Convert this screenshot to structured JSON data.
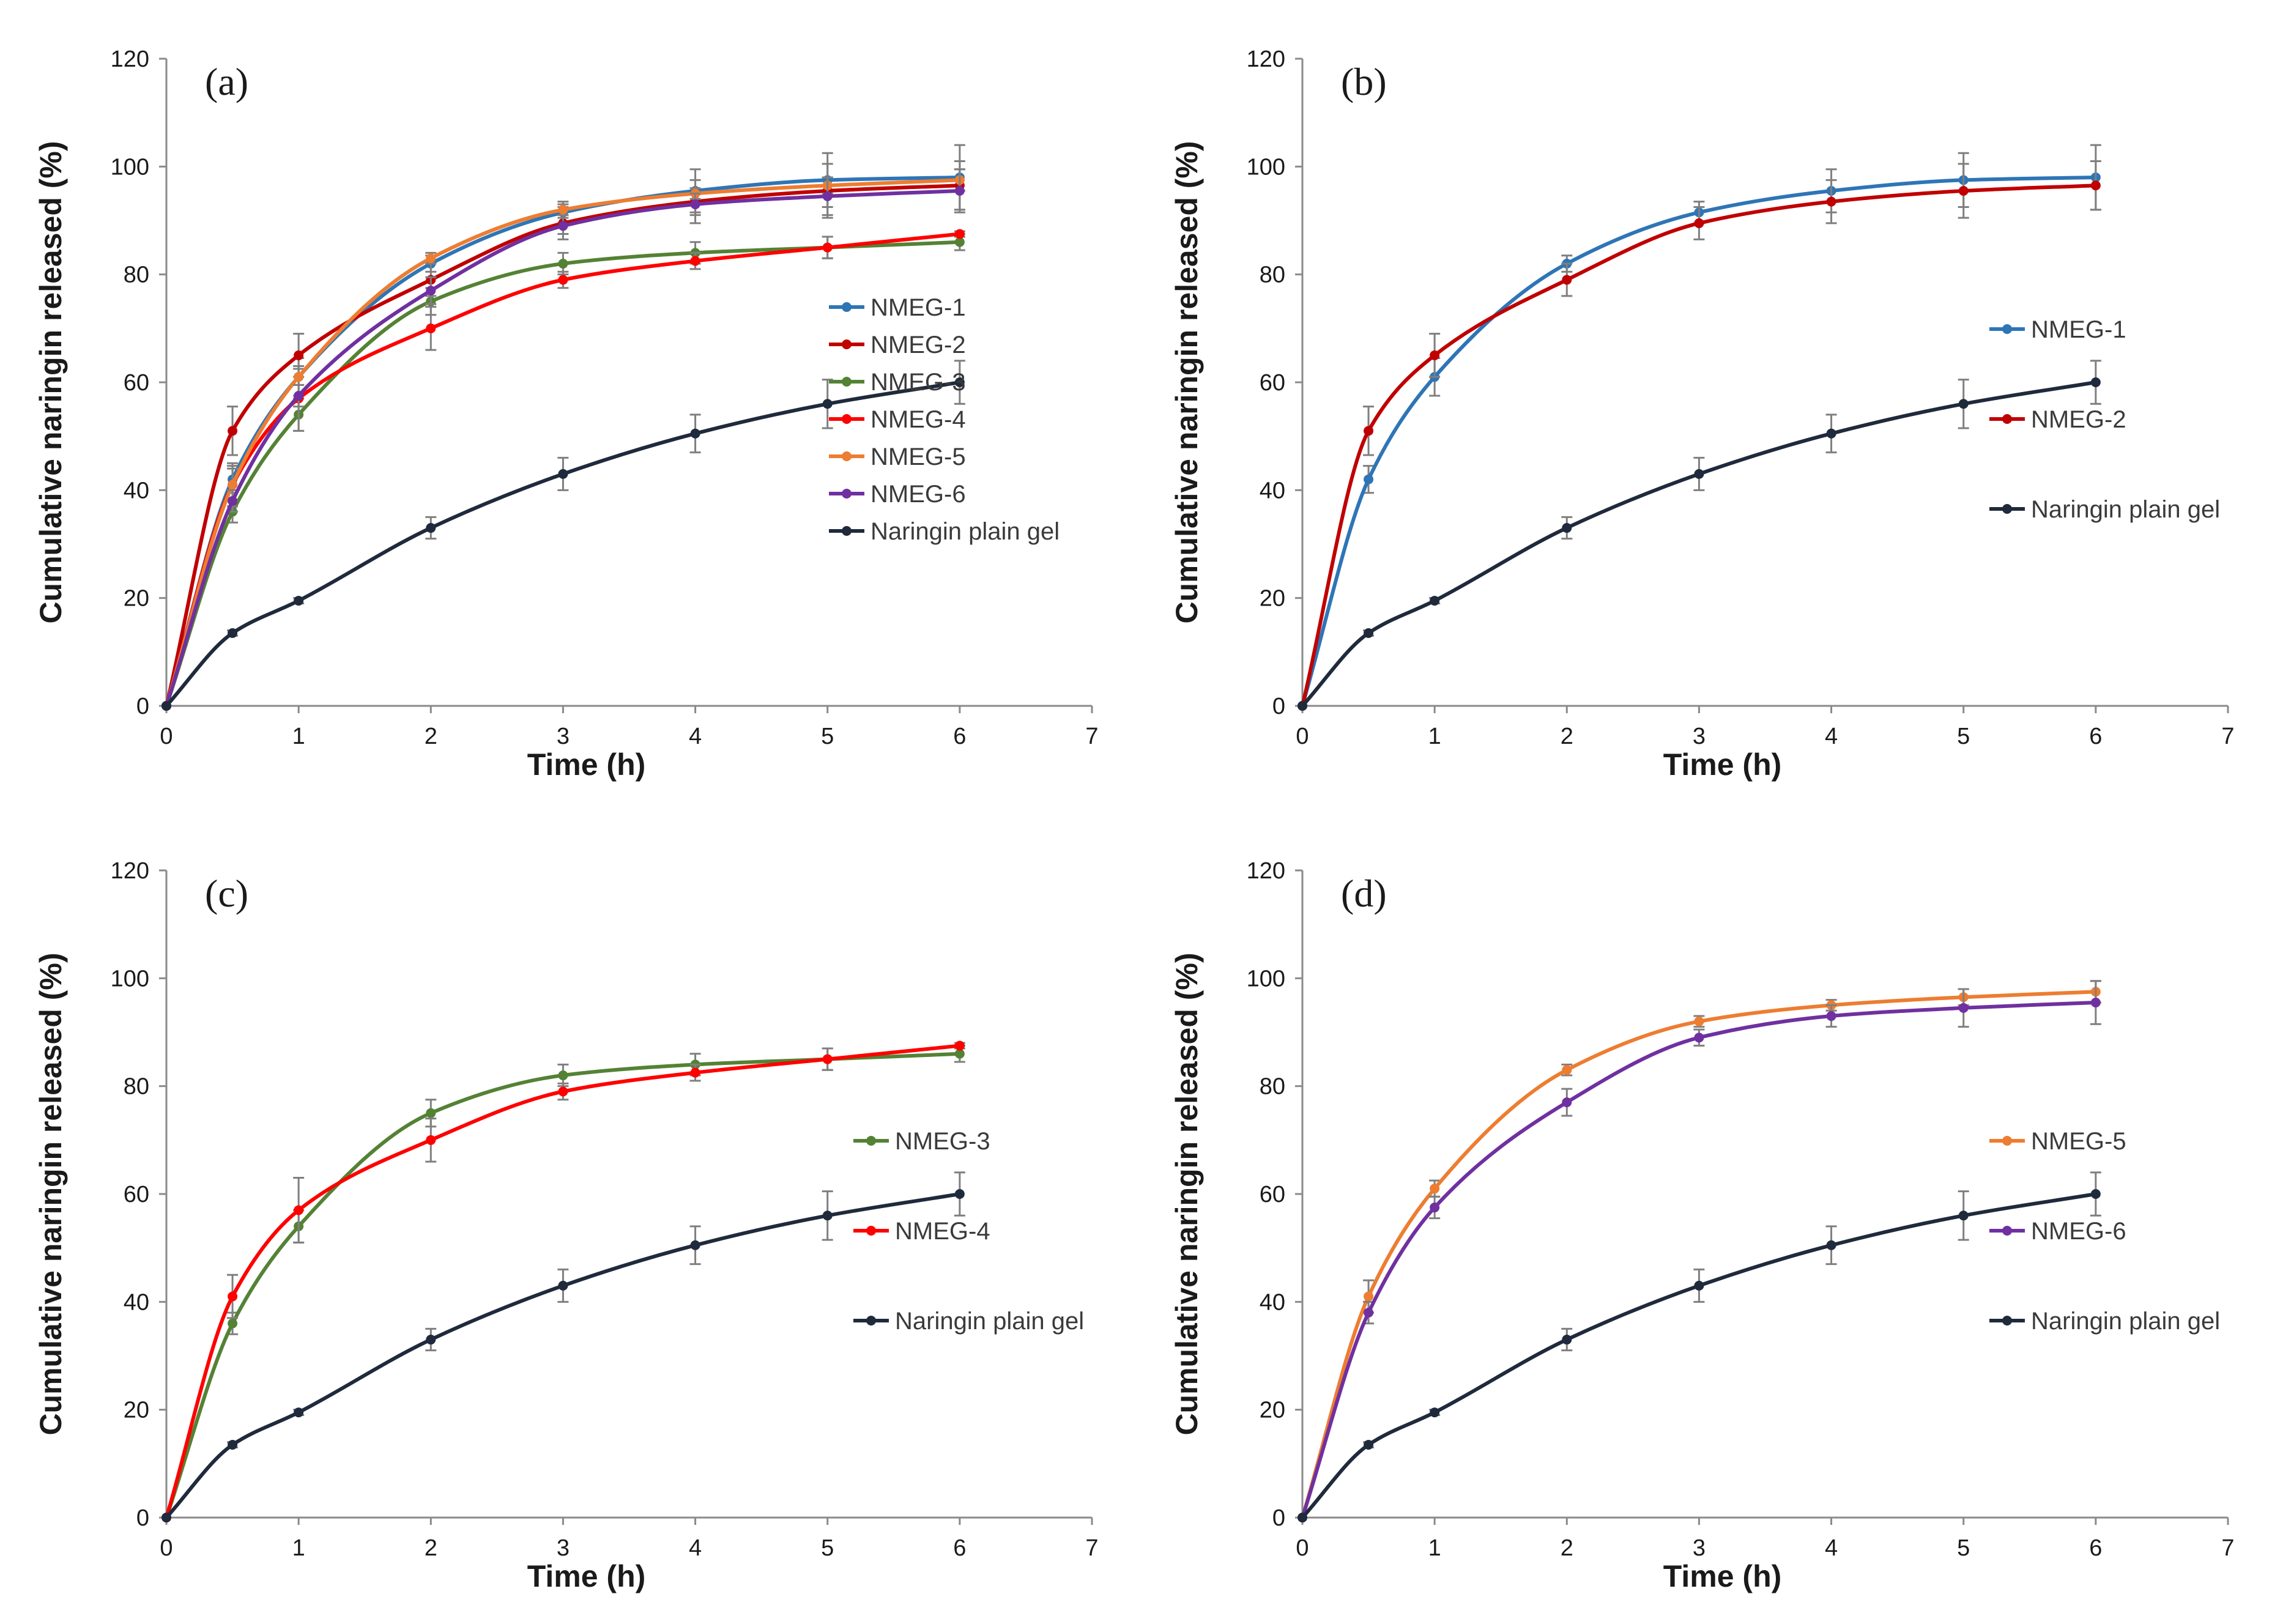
{
  "chart_data": [
    {
      "type": "line",
      "panel_label": "(a)",
      "xlabel": "Time (h)",
      "ylabel": "Cumulative naringin released (%)",
      "xlim": [
        0,
        7
      ],
      "ylim": [
        0,
        120
      ],
      "xticks": [
        0,
        1,
        2,
        3,
        4,
        5,
        6,
        7
      ],
      "yticks": [
        0,
        20,
        40,
        60,
        80,
        100,
        120
      ],
      "grid": false,
      "legend_position": "right-middle",
      "legend_gap": "compact",
      "x": [
        0,
        0.5,
        1,
        2,
        3,
        4,
        5,
        6
      ],
      "series": [
        {
          "name": "NMEG-1",
          "color": "#2e75b6",
          "values": [
            0,
            42,
            61,
            82,
            91.5,
            95.5,
            97.5,
            98
          ],
          "errors": [
            0,
            2.5,
            3.5,
            1.5,
            2,
            4,
            5,
            6
          ]
        },
        {
          "name": "NMEG-2",
          "color": "#c00000",
          "values": [
            0,
            51,
            65,
            79,
            89.5,
            93.5,
            95.5,
            96.5
          ],
          "errors": [
            0,
            4.5,
            4,
            3,
            3,
            4,
            5,
            4.5
          ]
        },
        {
          "name": "NMEG-3",
          "color": "#548235",
          "values": [
            0,
            36,
            54,
            75,
            82,
            84,
            85,
            86
          ],
          "errors": [
            0,
            2,
            3,
            2.5,
            2,
            2,
            2,
            1.5
          ]
        },
        {
          "name": "NMEG-4",
          "color": "#ff0000",
          "values": [
            0,
            41,
            57,
            70,
            79,
            82.5,
            85,
            87.5
          ],
          "errors": [
            0,
            4,
            6,
            4,
            1.5,
            1.5,
            2,
            0.5
          ]
        },
        {
          "name": "NMEG-5",
          "color": "#ed7d31",
          "values": [
            0,
            41,
            61,
            83,
            92,
            95,
            96.5,
            97.5
          ],
          "errors": [
            0,
            3,
            1.5,
            1,
            1,
            1,
            1.5,
            2
          ]
        },
        {
          "name": "NMEG-6",
          "color": "#7030a0",
          "values": [
            0,
            38,
            57.5,
            77,
            89,
            93,
            94.5,
            95.5
          ],
          "errors": [
            0,
            2,
            2,
            2.5,
            1.5,
            2,
            3.5,
            4
          ]
        },
        {
          "name": "Naringin plain gel",
          "color": "#1f2a3c",
          "values": [
            0,
            13.5,
            19.5,
            33,
            43,
            50.5,
            56,
            60
          ],
          "errors": [
            0,
            0.5,
            0.5,
            2,
            3,
            3.5,
            4.5,
            4
          ]
        }
      ]
    },
    {
      "type": "line",
      "panel_label": "(b)",
      "xlabel": "Time (h)",
      "ylabel": "Cumulative naringin released (%)",
      "xlim": [
        0,
        7
      ],
      "ylim": [
        0,
        120
      ],
      "xticks": [
        0,
        1,
        2,
        3,
        4,
        5,
        6,
        7
      ],
      "yticks": [
        0,
        20,
        40,
        60,
        80,
        100,
        120
      ],
      "grid": false,
      "legend_position": "right-middle",
      "legend_gap": "wide",
      "x": [
        0,
        0.5,
        1,
        2,
        3,
        4,
        5,
        6
      ],
      "series": [
        {
          "name": "NMEG-1",
          "color": "#2e75b6",
          "values": [
            0,
            42,
            61,
            82,
            91.5,
            95.5,
            97.5,
            98
          ],
          "errors": [
            0,
            2.5,
            3.5,
            1.5,
            2,
            4,
            5,
            6
          ]
        },
        {
          "name": "NMEG-2",
          "color": "#c00000",
          "values": [
            0,
            51,
            65,
            79,
            89.5,
            93.5,
            95.5,
            96.5
          ],
          "errors": [
            0,
            4.5,
            4,
            3,
            3,
            4,
            5,
            4.5
          ]
        },
        {
          "name": "Naringin plain gel",
          "color": "#1f2a3c",
          "values": [
            0,
            13.5,
            19.5,
            33,
            43,
            50.5,
            56,
            60
          ],
          "errors": [
            0,
            0.5,
            0.5,
            2,
            3,
            3.5,
            4.5,
            4
          ]
        }
      ]
    },
    {
      "type": "line",
      "panel_label": "(c)",
      "xlabel": "Time (h)",
      "ylabel": "Cumulative naringin released (%)",
      "xlim": [
        0,
        7
      ],
      "ylim": [
        0,
        120
      ],
      "xticks": [
        0,
        1,
        2,
        3,
        4,
        5,
        6,
        7
      ],
      "yticks": [
        0,
        20,
        40,
        60,
        80,
        100,
        120
      ],
      "grid": false,
      "legend_position": "right-middle",
      "legend_gap": "wide",
      "x": [
        0,
        0.5,
        1,
        2,
        3,
        4,
        5,
        6
      ],
      "series": [
        {
          "name": "NMEG-3",
          "color": "#548235",
          "values": [
            0,
            36,
            54,
            75,
            82,
            84,
            85,
            86
          ],
          "errors": [
            0,
            2,
            3,
            2.5,
            2,
            2,
            2,
            1.5
          ]
        },
        {
          "name": "NMEG-4",
          "color": "#ff0000",
          "values": [
            0,
            41,
            57,
            70,
            79,
            82.5,
            85,
            87.5
          ],
          "errors": [
            0,
            4,
            6,
            4,
            1.5,
            1.5,
            2,
            0.5
          ]
        },
        {
          "name": "Naringin plain gel",
          "color": "#1f2a3c",
          "values": [
            0,
            13.5,
            19.5,
            33,
            43,
            50.5,
            56,
            60
          ],
          "errors": [
            0,
            0.5,
            0.5,
            2,
            3,
            3.5,
            4.5,
            4
          ]
        }
      ]
    },
    {
      "type": "line",
      "panel_label": "(d)",
      "xlabel": "Time (h)",
      "ylabel": "Cumulative naringin released (%)",
      "xlim": [
        0,
        7
      ],
      "ylim": [
        0,
        120
      ],
      "xticks": [
        0,
        1,
        2,
        3,
        4,
        5,
        6,
        7
      ],
      "yticks": [
        0,
        20,
        40,
        60,
        80,
        100,
        120
      ],
      "grid": false,
      "legend_position": "right-middle",
      "legend_gap": "wide",
      "x": [
        0,
        0.5,
        1,
        2,
        3,
        4,
        5,
        6
      ],
      "series": [
        {
          "name": "NMEG-5",
          "color": "#ed7d31",
          "values": [
            0,
            41,
            61,
            83,
            92,
            95,
            96.5,
            97.5
          ],
          "errors": [
            0,
            3,
            1.5,
            1,
            1,
            1,
            1.5,
            2
          ]
        },
        {
          "name": "NMEG-6",
          "color": "#7030a0",
          "values": [
            0,
            38,
            57.5,
            77,
            89,
            93,
            94.5,
            95.5
          ],
          "errors": [
            0,
            2,
            2,
            2.5,
            1.5,
            2,
            3.5,
            4
          ]
        },
        {
          "name": "Naringin plain gel",
          "color": "#1f2a3c",
          "values": [
            0,
            13.5,
            19.5,
            33,
            43,
            50.5,
            56,
            60
          ],
          "errors": [
            0,
            0.5,
            0.5,
            2,
            3,
            3.5,
            4.5,
            4
          ]
        }
      ]
    }
  ]
}
